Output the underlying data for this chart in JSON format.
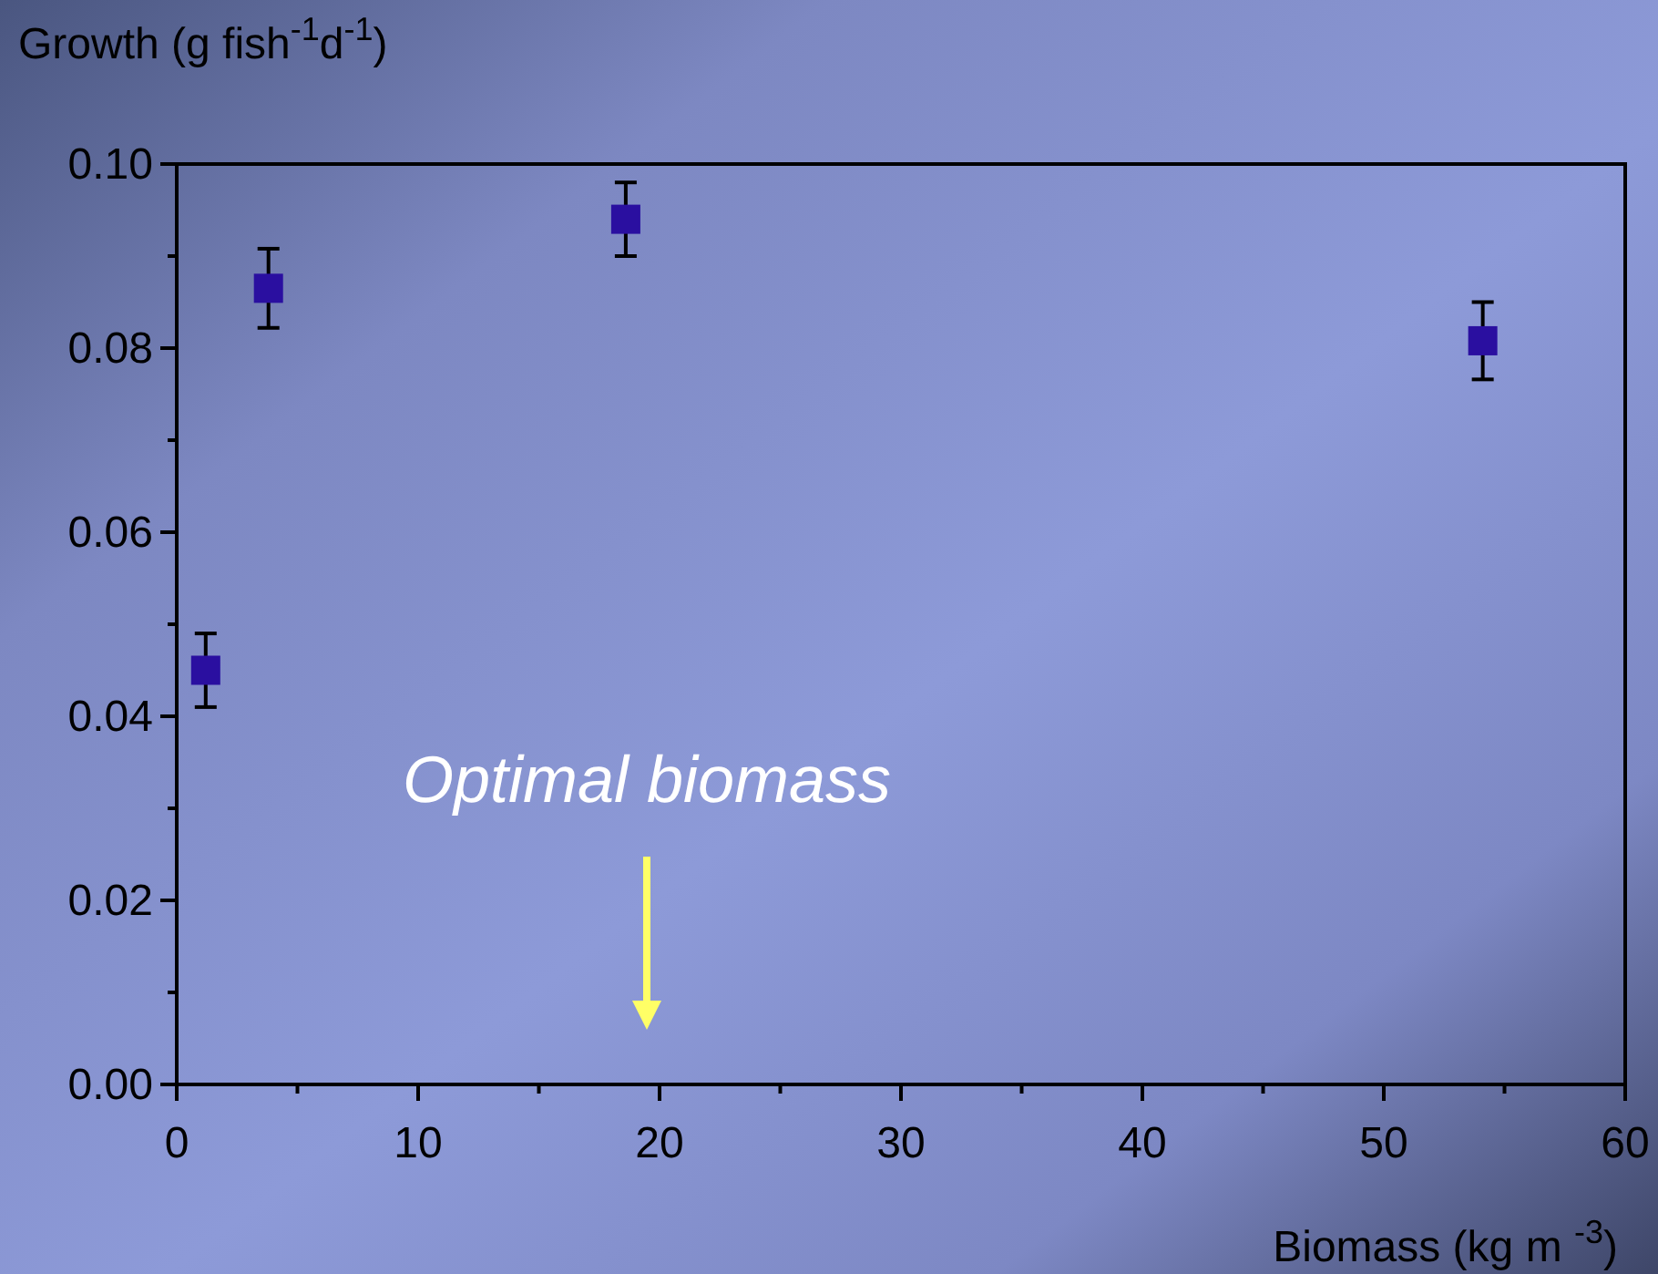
{
  "chart_data": {
    "type": "scatter",
    "xlabel": "Biomass (kg m $^{-3}$)",
    "ylabel": "Growth (g fish$^{-1}$d$^{-1}$)",
    "x": [
      1.2,
      3.8,
      18.6,
      54.1
    ],
    "series": [
      {
        "color": "#2a0fa0",
        "values": [
          0.045,
          0.0865,
          0.094,
          0.0808
        ],
        "errors": [
          0.004,
          0.0043,
          0.004,
          0.0042
        ]
      }
    ],
    "xlim": [
      0,
      60
    ],
    "xticks": [
      0,
      10,
      20,
      30,
      40,
      50,
      60
    ],
    "ylim": [
      0,
      0.1
    ],
    "yticks": [
      {
        "value": 0,
        "label": "0.00"
      },
      {
        "value": 0.02,
        "label": "0.02"
      },
      {
        "value": 0.04,
        "label": "0.04"
      },
      {
        "value": 0.06,
        "label": "0.06"
      },
      {
        "value": 0.08,
        "label": "0.08"
      },
      {
        "value": 0.1,
        "label": "0.10"
      }
    ],
    "marker": "square",
    "grid": false,
    "annotations": [
      "Optimal biomass"
    ]
  }
}
